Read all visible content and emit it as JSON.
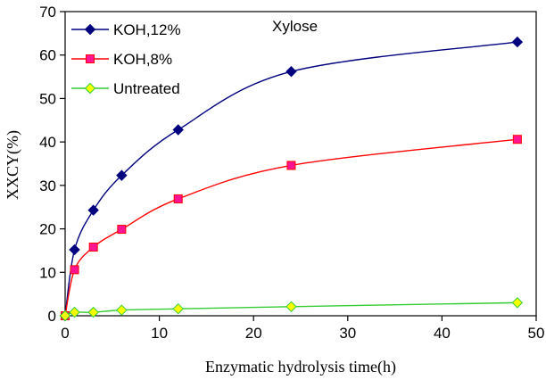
{
  "chart_data": {
    "type": "line",
    "title": "",
    "annotation": "Xylose",
    "xlabel": "Enzymatic hydrolysis time(h)",
    "ylabel": "XXCY(%)",
    "xlim": [
      0,
      50
    ],
    "ylim": [
      0,
      70
    ],
    "xticks": [
      0,
      10,
      20,
      30,
      40,
      50
    ],
    "yticks": [
      0,
      10,
      20,
      30,
      40,
      50,
      60,
      70
    ],
    "grid": false,
    "legend_position": "top-left",
    "series": [
      {
        "name": "KOH,12%",
        "color": "#00007f",
        "marker": "diamond",
        "x": [
          0,
          1,
          3,
          6,
          12,
          24,
          48
        ],
        "y": [
          0,
          15.2,
          24.3,
          32.3,
          42.8,
          56.2,
          63.0
        ]
      },
      {
        "name": "KOH,8%",
        "color": "#ff0000",
        "marker_fill": "#ff1493",
        "marker": "square",
        "x": [
          0,
          1,
          3,
          6,
          12,
          24,
          48
        ],
        "y": [
          0,
          10.6,
          15.8,
          19.9,
          26.9,
          34.6,
          40.6
        ]
      },
      {
        "name": "Untreated",
        "color": "#33cc33",
        "marker_fill": "#ffff00",
        "marker": "diamond",
        "x": [
          0,
          1,
          3,
          6,
          12,
          24,
          48
        ],
        "y": [
          0,
          0.8,
          0.8,
          1.3,
          1.6,
          2.1,
          3.0
        ]
      }
    ]
  }
}
